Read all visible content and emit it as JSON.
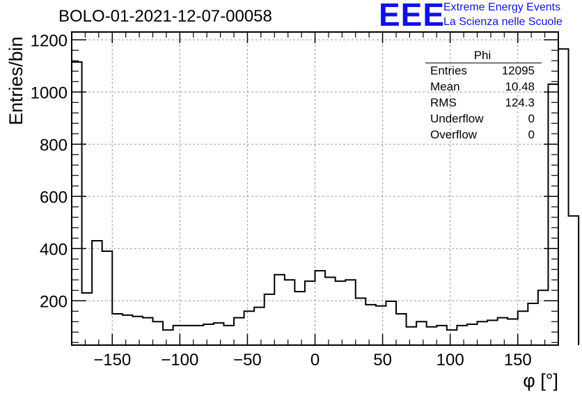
{
  "title": "BOLO-01-2021-12-07-00058",
  "logo": {
    "mark": "EEE",
    "line1": "Extreme Energy Events",
    "line2": "La Scienza nelle Scuole",
    "color": "#1010e6"
  },
  "stats": {
    "title": "Phi",
    "rows": [
      {
        "key": "Entries",
        "value": "12095"
      },
      {
        "key": "Mean",
        "value": "10.48"
      },
      {
        "key": "RMS",
        "value": "124.3"
      },
      {
        "key": "Underflow",
        "value": "0"
      },
      {
        "key": "Overflow",
        "value": "0"
      }
    ]
  },
  "chart_data": {
    "type": "histogram",
    "title": "BOLO-01-2021-12-07-00058",
    "xlabel": "φ [°]",
    "ylabel": "Entries/bin",
    "xlim": [
      -180,
      180
    ],
    "ylim": [
      30,
      1230
    ],
    "xticks": [
      -150,
      -100,
      -50,
      0,
      50,
      100,
      150
    ],
    "yticks": [
      200,
      400,
      600,
      800,
      1000,
      1200
    ],
    "grid": true,
    "bin_width": 7.5,
    "bin_edges_start": -180,
    "values": [
      1115,
      230,
      430,
      390,
      150,
      145,
      140,
      135,
      120,
      88,
      105,
      105,
      105,
      110,
      115,
      105,
      135,
      160,
      175,
      225,
      300,
      280,
      235,
      275,
      315,
      290,
      275,
      280,
      210,
      185,
      180,
      198,
      150,
      100,
      120,
      100,
      105,
      88,
      105,
      110,
      120,
      125,
      135,
      130,
      160,
      190,
      240,
      1030,
      1165,
      525
    ]
  }
}
